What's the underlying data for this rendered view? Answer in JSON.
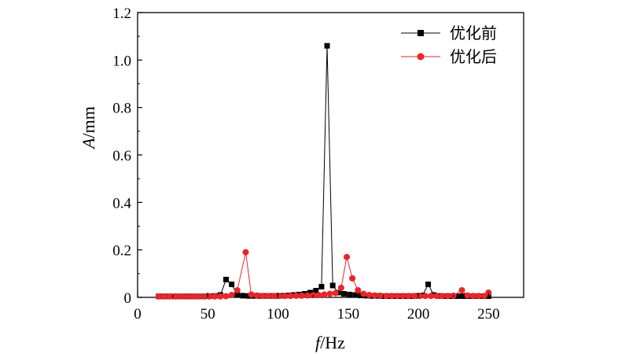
{
  "chart_data": {
    "type": "line",
    "xlabel": {
      "italic": "f",
      "rest": "/Hz"
    },
    "ylabel": {
      "italic": "A",
      "rest": "/mm"
    },
    "xlim": [
      0,
      275
    ],
    "ylim": [
      0,
      1.2
    ],
    "xticks": [
      0,
      50,
      100,
      150,
      200,
      250
    ],
    "yticks": [
      "0",
      "0.2",
      "0.4",
      "0.6",
      "0.8",
      "1.0",
      "1.2"
    ],
    "grid": false,
    "legend_position": "top-right",
    "series": [
      {
        "name": "优化前",
        "color": "#000000",
        "marker": "square",
        "points": [
          [
            15,
            0.004
          ],
          [
            19,
            0.004
          ],
          [
            23,
            0.004
          ],
          [
            27,
            0.004
          ],
          [
            31,
            0.004
          ],
          [
            35,
            0.004
          ],
          [
            39,
            0.004
          ],
          [
            43,
            0.004
          ],
          [
            47,
            0.004
          ],
          [
            51,
            0.005
          ],
          [
            55,
            0.006
          ],
          [
            59,
            0.01
          ],
          [
            63,
            0.075
          ],
          [
            67,
            0.055
          ],
          [
            71,
            0.012
          ],
          [
            75,
            0.007
          ],
          [
            79,
            0.006
          ],
          [
            83,
            0.006
          ],
          [
            87,
            0.006
          ],
          [
            91,
            0.006
          ],
          [
            95,
            0.006
          ],
          [
            99,
            0.006
          ],
          [
            103,
            0.007
          ],
          [
            107,
            0.008
          ],
          [
            111,
            0.01
          ],
          [
            115,
            0.012
          ],
          [
            119,
            0.015
          ],
          [
            123,
            0.02
          ],
          [
            127,
            0.028
          ],
          [
            131,
            0.045
          ],
          [
            135,
            1.06
          ],
          [
            139,
            0.05
          ],
          [
            143,
            0.02
          ],
          [
            147,
            0.015
          ],
          [
            151,
            0.012
          ],
          [
            155,
            0.01
          ],
          [
            159,
            0.008
          ],
          [
            163,
            0.007
          ],
          [
            167,
            0.006
          ],
          [
            171,
            0.006
          ],
          [
            175,
            0.005
          ],
          [
            179,
            0.005
          ],
          [
            183,
            0.005
          ],
          [
            187,
            0.005
          ],
          [
            191,
            0.005
          ],
          [
            195,
            0.005
          ],
          [
            199,
            0.006
          ],
          [
            203,
            0.008
          ],
          [
            207,
            0.055
          ],
          [
            211,
            0.01
          ],
          [
            215,
            0.006
          ],
          [
            219,
            0.005
          ],
          [
            223,
            0.005
          ],
          [
            227,
            0.005
          ],
          [
            231,
            0.005
          ],
          [
            235,
            0.005
          ],
          [
            239,
            0.005
          ],
          [
            243,
            0.005
          ],
          [
            247,
            0.005
          ],
          [
            250,
            0.005
          ]
        ]
      },
      {
        "name": "优化后",
        "color": "#e8262a",
        "marker": "circle",
        "points": [
          [
            15,
            0.004
          ],
          [
            19,
            0.004
          ],
          [
            23,
            0.004
          ],
          [
            27,
            0.004
          ],
          [
            31,
            0.004
          ],
          [
            35,
            0.004
          ],
          [
            39,
            0.004
          ],
          [
            43,
            0.004
          ],
          [
            47,
            0.004
          ],
          [
            51,
            0.004
          ],
          [
            55,
            0.004
          ],
          [
            59,
            0.004
          ],
          [
            63,
            0.005
          ],
          [
            67,
            0.01
          ],
          [
            71,
            0.03
          ],
          [
            77,
            0.19
          ],
          [
            81,
            0.012
          ],
          [
            85,
            0.008
          ],
          [
            89,
            0.006
          ],
          [
            93,
            0.006
          ],
          [
            97,
            0.006
          ],
          [
            101,
            0.006
          ],
          [
            105,
            0.006
          ],
          [
            109,
            0.006
          ],
          [
            113,
            0.007
          ],
          [
            117,
            0.007
          ],
          [
            121,
            0.008
          ],
          [
            125,
            0.009
          ],
          [
            129,
            0.01
          ],
          [
            133,
            0.012
          ],
          [
            137,
            0.015
          ],
          [
            141,
            0.018
          ],
          [
            145,
            0.04
          ],
          [
            149,
            0.17
          ],
          [
            153,
            0.08
          ],
          [
            157,
            0.03
          ],
          [
            161,
            0.015
          ],
          [
            165,
            0.01
          ],
          [
            169,
            0.008
          ],
          [
            173,
            0.007
          ],
          [
            177,
            0.006
          ],
          [
            181,
            0.006
          ],
          [
            185,
            0.006
          ],
          [
            189,
            0.006
          ],
          [
            193,
            0.006
          ],
          [
            197,
            0.006
          ],
          [
            201,
            0.006
          ],
          [
            205,
            0.006
          ],
          [
            209,
            0.006
          ],
          [
            213,
            0.006
          ],
          [
            217,
            0.006
          ],
          [
            221,
            0.006
          ],
          [
            225,
            0.007
          ],
          [
            231,
            0.03
          ],
          [
            235,
            0.008
          ],
          [
            239,
            0.006
          ],
          [
            243,
            0.006
          ],
          [
            247,
            0.006
          ],
          [
            250,
            0.02
          ]
        ]
      }
    ]
  }
}
